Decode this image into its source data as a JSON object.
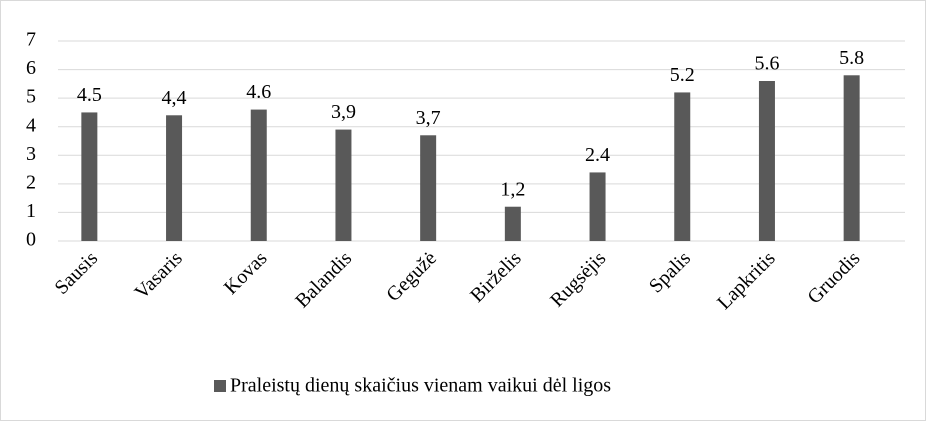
{
  "chart_data": {
    "type": "bar",
    "categories": [
      "Sausis",
      "Vasaris",
      "Kovas",
      "Balandis",
      "Gegužė",
      "Birželis",
      "Rugsėjis",
      "Spalis",
      "Lapkritis",
      "Gruodis"
    ],
    "series": [
      {
        "name": "Praleistų dienų skaičius vienam vaikui dėl ligos",
        "color": "#595959",
        "values": [
          4.5,
          4.4,
          4.6,
          3.9,
          3.7,
          1.2,
          2.4,
          5.2,
          5.6,
          5.8
        ],
        "value_labels": [
          "4.5",
          "4,4",
          "4.6",
          "3,9",
          "3,7",
          "1,2",
          "2.4",
          "5.2",
          "5.6",
          "5.8"
        ]
      }
    ],
    "ylim": [
      0,
      7
    ],
    "yticks": [
      0,
      1,
      2,
      3,
      4,
      5,
      6,
      7
    ],
    "grid": true,
    "legend": "bottom"
  }
}
